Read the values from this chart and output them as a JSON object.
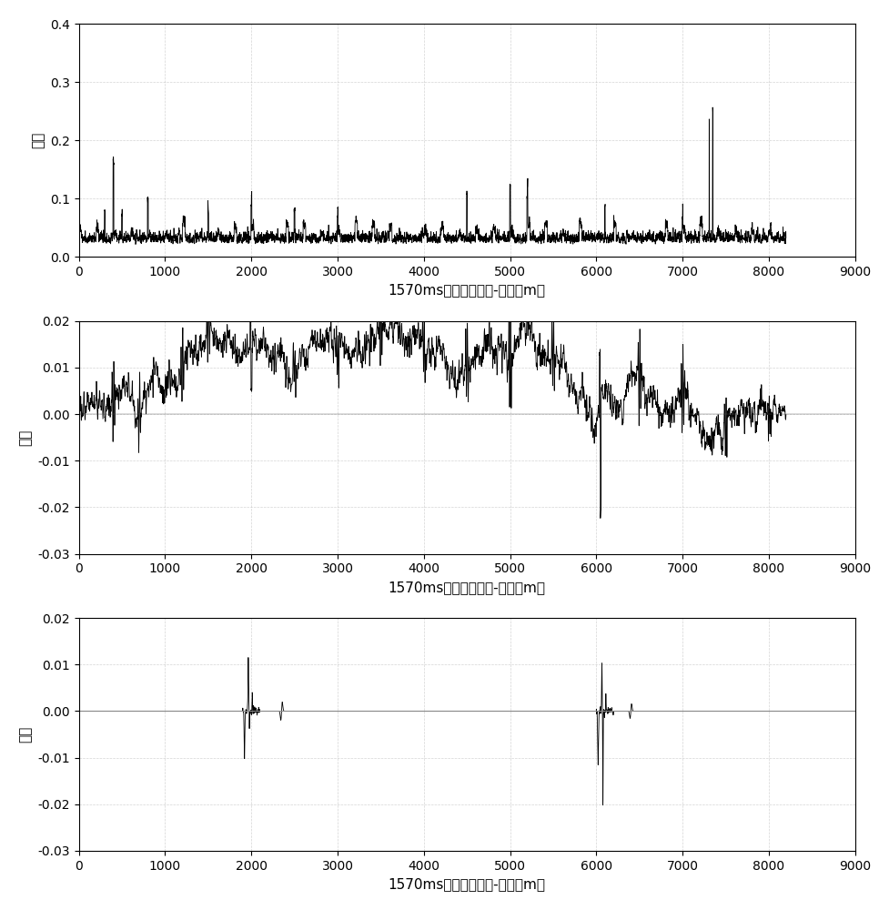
{
  "plot1": {
    "xlabel": "1570ms时刻原始信号-距离（m）",
    "ylabel": "幅值",
    "xlim": [
      0,
      9000
    ],
    "ylim": [
      0,
      0.4
    ],
    "yticks": [
      0,
      0.1,
      0.2,
      0.3,
      0.4
    ],
    "xticks": [
      0,
      1000,
      2000,
      3000,
      4000,
      5000,
      6000,
      7000,
      8000,
      9000
    ],
    "line_color": "#000000",
    "bg_color": "#ffffff"
  },
  "plot2": {
    "xlabel": "1570ms时刻差值信号-距离（m）",
    "ylabel": "幅值",
    "xlim": [
      0,
      9000
    ],
    "ylim": [
      -0.03,
      0.02
    ],
    "yticks": [
      -0.03,
      -0.02,
      -0.01,
      0,
      0.01,
      0.02
    ],
    "xticks": [
      0,
      1000,
      2000,
      3000,
      4000,
      5000,
      6000,
      7000,
      8000,
      9000
    ],
    "line_color": "#000000",
    "bg_color": "#ffffff"
  },
  "plot3": {
    "xlabel": "1570ms时刻有效信号-距离（m）",
    "ylabel": "幅值",
    "xlim": [
      0,
      9000
    ],
    "ylim": [
      -0.03,
      0.02
    ],
    "yticks": [
      -0.03,
      -0.02,
      -0.01,
      0,
      0.01,
      0.02
    ],
    "xticks": [
      0,
      1000,
      2000,
      3000,
      4000,
      5000,
      6000,
      7000,
      8000,
      9000
    ],
    "line_color": "#000000",
    "bg_color": "#ffffff"
  },
  "fig_bg_color": "#ffffff",
  "grid_color": "#aaaaaa",
  "grid_style": "--",
  "grid_alpha": 0.5,
  "font_size_label": 11,
  "font_size_tick": 10
}
